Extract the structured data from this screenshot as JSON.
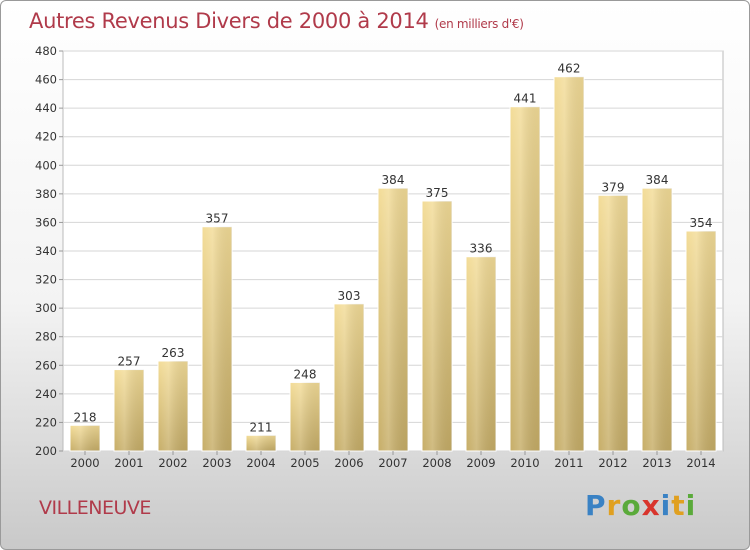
{
  "title": "Autres Revenus Divers de 2000 à 2014",
  "subtitle": "(en milliers d'€)",
  "location": "VILLENEUVE",
  "logo": {
    "text": "Proxiti",
    "letters": [
      {
        "char": "P",
        "color": "#3a82c4"
      },
      {
        "char": "r",
        "color": "#e0a020"
      },
      {
        "char": "o",
        "color": "#5aaa3a"
      },
      {
        "char": "x",
        "color": "#d8342c"
      },
      {
        "char": "i",
        "color": "#3a82c4"
      },
      {
        "char": "t",
        "color": "#e0a020"
      },
      {
        "char": "i",
        "color": "#5aaa3a"
      }
    ]
  },
  "chart_data": {
    "type": "bar",
    "title": "Autres Revenus Divers de 2000 à 2014",
    "subtitle": "(en milliers d'€)",
    "categories": [
      "2000",
      "2001",
      "2002",
      "2003",
      "2004",
      "2005",
      "2006",
      "2007",
      "2008",
      "2009",
      "2010",
      "2011",
      "2012",
      "2013",
      "2014"
    ],
    "values": [
      218,
      257,
      263,
      357,
      211,
      248,
      303,
      384,
      375,
      336,
      441,
      462,
      379,
      384,
      354
    ],
    "ylim": [
      200,
      480
    ],
    "yticks": [
      200,
      220,
      240,
      260,
      280,
      300,
      320,
      340,
      360,
      380,
      400,
      420,
      440,
      460,
      480
    ],
    "grid": true,
    "bar_color_top": "#f3dc97",
    "bar_color_bottom": "#c6ad67"
  }
}
